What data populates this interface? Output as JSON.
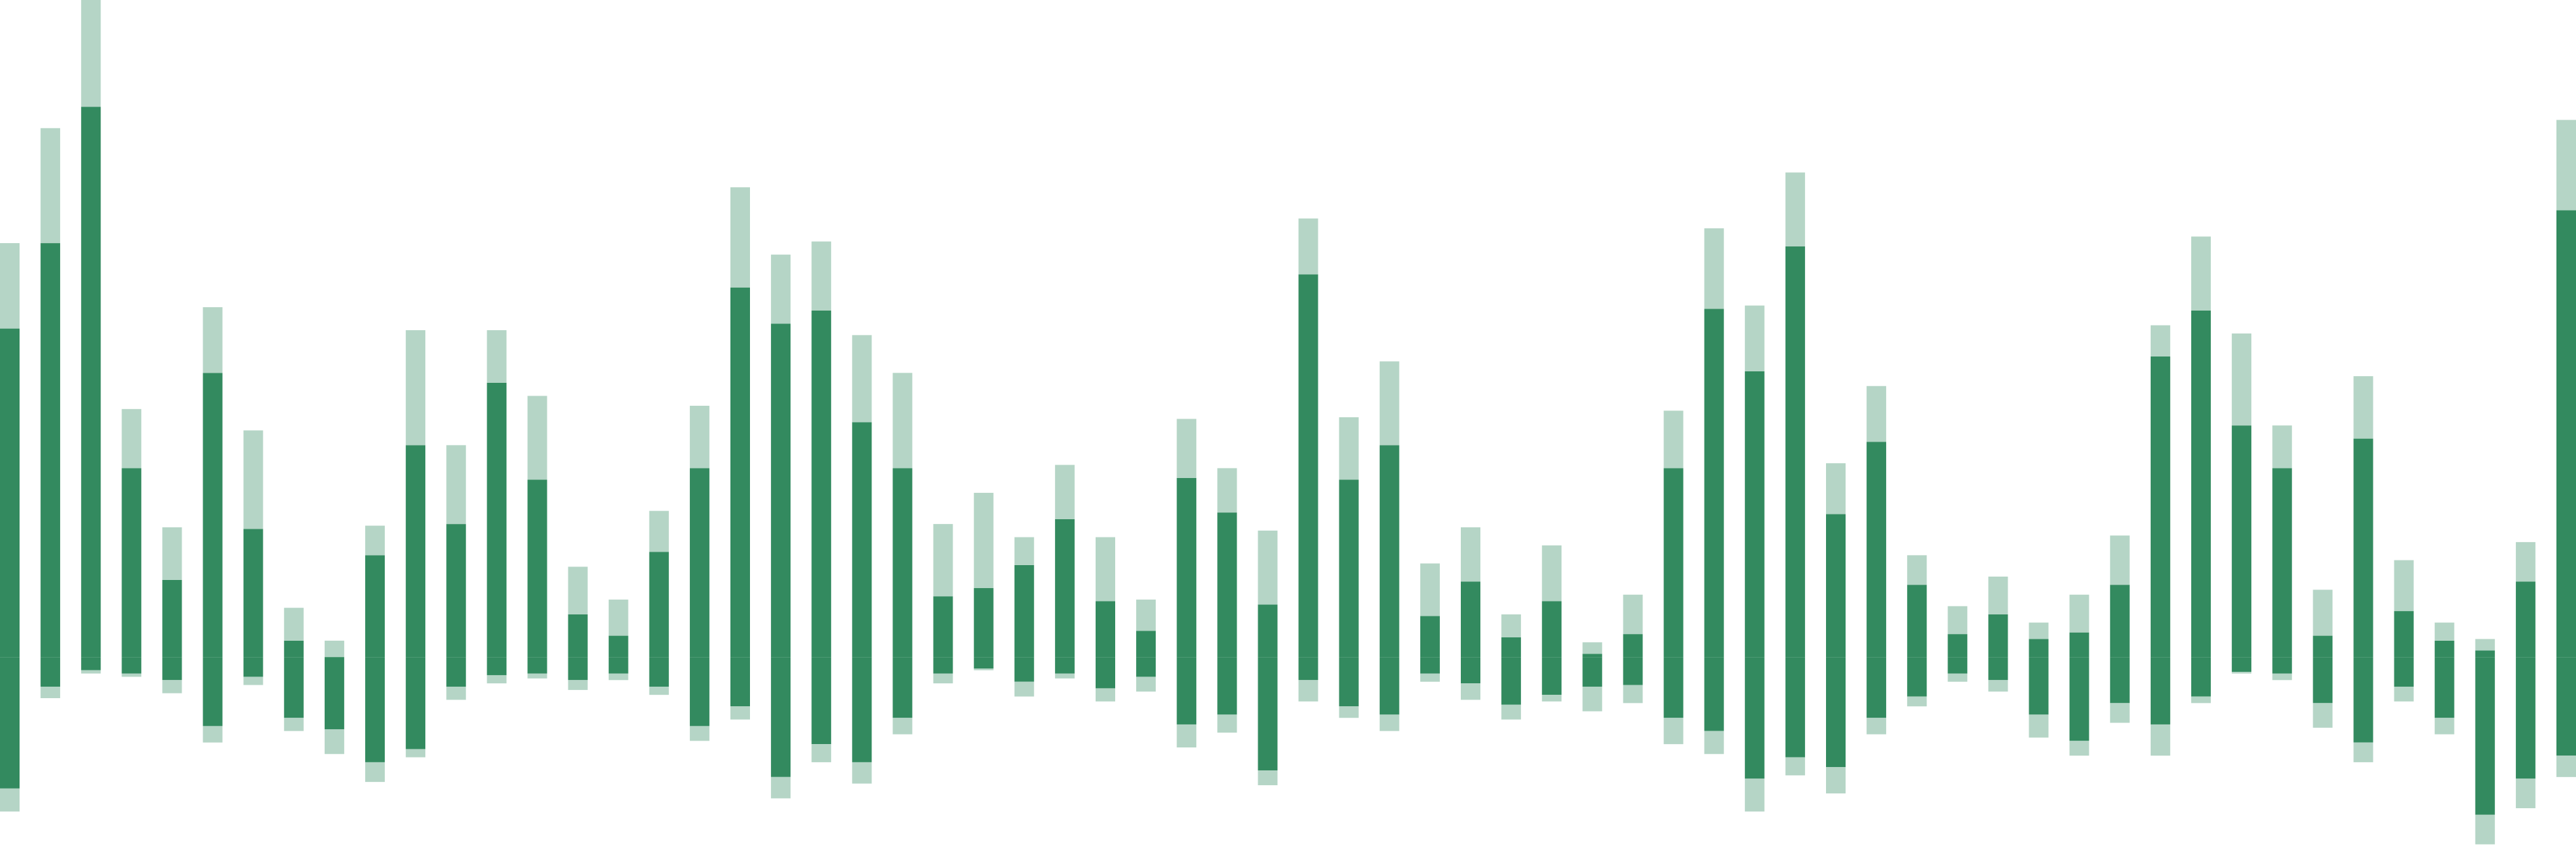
{
  "chart_data": {
    "type": "bar",
    "stacked": true,
    "ylim": [
      -109,
      400
    ],
    "series": [
      {
        "color": "#338a5f",
        "values": [
          200,
          252,
          335,
          115,
          47,
          173,
          78,
          10,
          0,
          62,
          129,
          81,
          167,
          108,
          26,
          13,
          64,
          115,
          225,
          203,
          211,
          143,
          115,
          37,
          42,
          56,
          84,
          34,
          16,
          109,
          88,
          32,
          233,
          108,
          129,
          25,
          46,
          12,
          34,
          2,
          14,
          115,
          212,
          174,
          250,
          87,
          131,
          44,
          14,
          26,
          11,
          15,
          44,
          183,
          211,
          141,
          115,
          13,
          133,
          28,
          10,
          4,
          46,
          272
        ]
      },
      {
        "color": "#b5d5c6",
        "values": [
          52,
          70,
          65,
          36,
          32,
          40,
          60,
          20,
          10,
          18,
          70,
          48,
          32,
          51,
          29,
          22,
          25,
          38,
          61,
          42,
          42,
          53,
          58,
          44,
          58,
          17,
          33,
          39,
          19,
          36,
          27,
          45,
          34,
          38,
          51,
          32,
          33,
          14,
          34,
          7,
          24,
          35,
          49,
          40,
          45,
          31,
          34,
          18,
          17,
          23,
          10,
          23,
          30,
          19,
          45,
          56,
          26,
          28,
          38,
          31,
          11,
          7,
          24,
          55
        ]
      },
      {
        "color": "#338a5f",
        "values": [
          -74,
          -12,
          -2,
          -4,
          -8,
          -36,
          -6,
          -31,
          -38,
          -58,
          -50,
          -12,
          -5,
          -4,
          -8,
          -4,
          -12,
          -36,
          -24,
          -67,
          -47,
          -58,
          -31,
          -4,
          -1,
          -9,
          -4,
          -13,
          -6,
          -35,
          -29,
          -63,
          -8,
          -24,
          -29,
          -4,
          -10,
          -23,
          -17,
          -12,
          -11,
          -31,
          -39,
          -68,
          -55,
          -61,
          -31,
          -18,
          -4,
          -8,
          -29,
          -45,
          -22,
          -35,
          -18,
          -3,
          -4,
          -22,
          -46,
          -12,
          -31,
          -90,
          -68,
          -54
        ]
      },
      {
        "color": "#b5d5c6",
        "values": [
          -14,
          -7,
          -2,
          -2,
          -8,
          -10,
          -5,
          -8,
          -15,
          -12,
          -5,
          -8,
          -5,
          -3,
          -6,
          -4,
          -5,
          -9,
          -8,
          -13,
          -11,
          -13,
          -10,
          -6,
          -1,
          -9,
          -3,
          -8,
          -9,
          -14,
          -11,
          -9,
          -13,
          -7,
          -10,
          -5,
          -10,
          -9,
          -4,
          -15,
          -11,
          -16,
          -14,
          -20,
          -11,
          -16,
          -10,
          -6,
          -5,
          -7,
          -14,
          -9,
          -12,
          -19,
          -4,
          -1,
          -4,
          -15,
          -12,
          -9,
          -10,
          -18,
          -18,
          -13
        ]
      }
    ]
  }
}
